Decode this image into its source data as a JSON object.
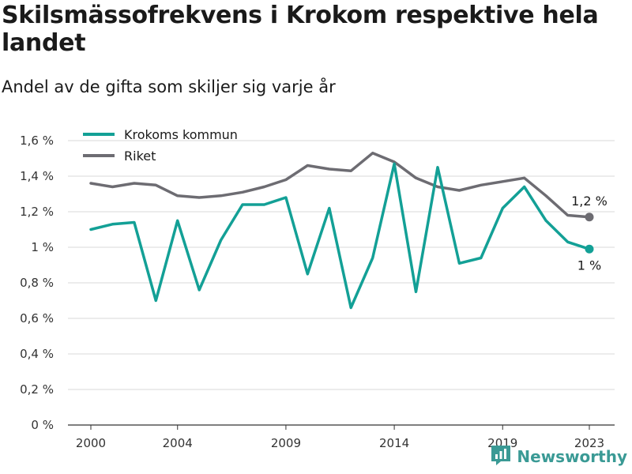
{
  "chart_data": {
    "type": "line",
    "title": "Skilsmässofrekvens i Krokom respektive hela landet",
    "subtitle": "Andel av de gifta som skiljer sig varje år",
    "xlabel": "",
    "ylabel": "",
    "x": [
      2000,
      2001,
      2002,
      2003,
      2004,
      2005,
      2006,
      2007,
      2008,
      2009,
      2010,
      2011,
      2012,
      2013,
      2014,
      2015,
      2016,
      2017,
      2018,
      2019,
      2020,
      2021,
      2022,
      2023
    ],
    "x_ticks": [
      2000,
      2004,
      2009,
      2014,
      2019,
      2023
    ],
    "x_tick_labels": [
      "2000",
      "2004",
      "2009",
      "2014",
      "2019",
      "2023"
    ],
    "ylim": [
      0,
      1.6
    ],
    "y_ticks": [
      0,
      0.2,
      0.4,
      0.6,
      0.8,
      1.0,
      1.2,
      1.4,
      1.6
    ],
    "y_tick_labels": [
      "0 %",
      "0,2 %",
      "0,4 %",
      "0,6 %",
      "0,8 %",
      "1 %",
      "1,2 %",
      "1,4 %",
      "1,6 %"
    ],
    "grid": true,
    "legend_position": "top-left",
    "series": [
      {
        "name": "Krokoms kommun",
        "color": "#13a096",
        "values": [
          1.1,
          1.13,
          1.14,
          0.7,
          1.15,
          0.76,
          1.04,
          1.24,
          1.24,
          1.28,
          0.85,
          1.22,
          0.66,
          0.94,
          1.47,
          0.75,
          1.45,
          0.91,
          0.94,
          1.22,
          1.34,
          1.15,
          1.03,
          0.99
        ],
        "end_label": "1 %"
      },
      {
        "name": "Riket",
        "color": "#6d6c72",
        "values": [
          1.36,
          1.34,
          1.36,
          1.35,
          1.29,
          1.28,
          1.29,
          1.31,
          1.34,
          1.38,
          1.46,
          1.44,
          1.43,
          1.53,
          1.48,
          1.39,
          1.34,
          1.32,
          1.35,
          1.37,
          1.39,
          1.29,
          1.18,
          1.17
        ],
        "end_label": "1,2 %"
      }
    ]
  },
  "brand": {
    "name": "Newsworthy",
    "color": "#3a9a95",
    "icon": "bar-chart-icon"
  }
}
